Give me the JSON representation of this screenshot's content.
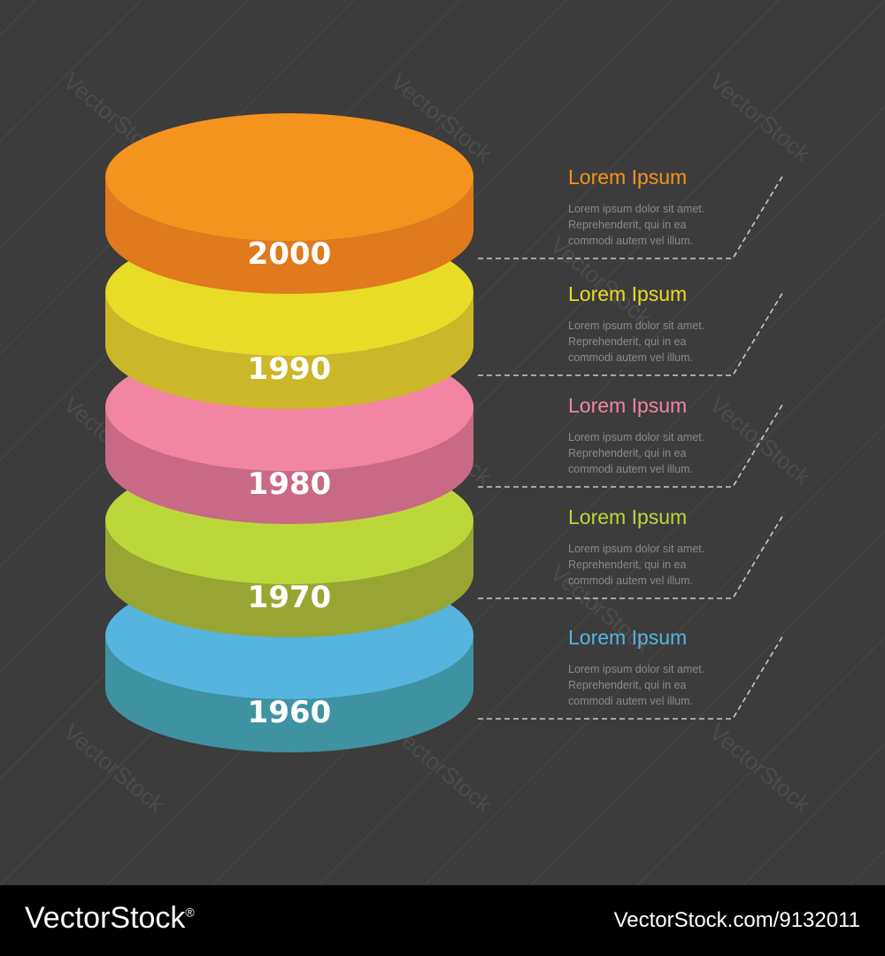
{
  "timeline": {
    "layers": [
      {
        "year": "2000",
        "top_color": "#f5931f",
        "side_color": "#e07a1d"
      },
      {
        "year": "1990",
        "top_color": "#e8dc26",
        "side_color": "#cbb729"
      },
      {
        "year": "1980",
        "top_color": "#f185a2",
        "side_color": "#c86a85"
      },
      {
        "year": "1970",
        "top_color": "#bcd73a",
        "side_color": "#99a532"
      },
      {
        "year": "1960",
        "top_color": "#55b5de",
        "side_color": "#3f92a2"
      }
    ],
    "items": [
      {
        "title": "Lorem Ipsum",
        "color": "#f5931f",
        "lines": [
          "Lorem ipsum dolor sit amet.",
          "Reprehenderit, qui in ea",
          "commodi autem vel illum."
        ]
      },
      {
        "title": "Lorem Ipsum",
        "color": "#e8dc26",
        "lines": [
          "Lorem ipsum dolor sit amet.",
          "Reprehenderit, qui in ea",
          "commodi autem vel illum."
        ]
      },
      {
        "title": "Lorem Ipsum",
        "color": "#f185a2",
        "lines": [
          "Lorem ipsum dolor sit amet.",
          "Reprehenderit, qui in ea",
          "commodi autem vel illum."
        ]
      },
      {
        "title": "Lorem Ipsum",
        "color": "#bcd73a",
        "lines": [
          "Lorem ipsum dolor sit amet.",
          "Reprehenderit, qui in ea",
          "commodi autem vel illum."
        ]
      },
      {
        "title": "Lorem Ipsum",
        "color": "#55b5de",
        "lines": [
          "Lorem ipsum dolor sit amet.",
          "Reprehenderit, qui in ea",
          "commodi autem vel illum."
        ]
      }
    ]
  },
  "watermark": {
    "text": "VectorStock"
  },
  "footer": {
    "brand": "VectorStock",
    "brand_mark": "®",
    "url": "VectorStock.com/9132011"
  },
  "colors": {
    "background": "#3c3c3c",
    "connector": "#c8c8c8"
  }
}
